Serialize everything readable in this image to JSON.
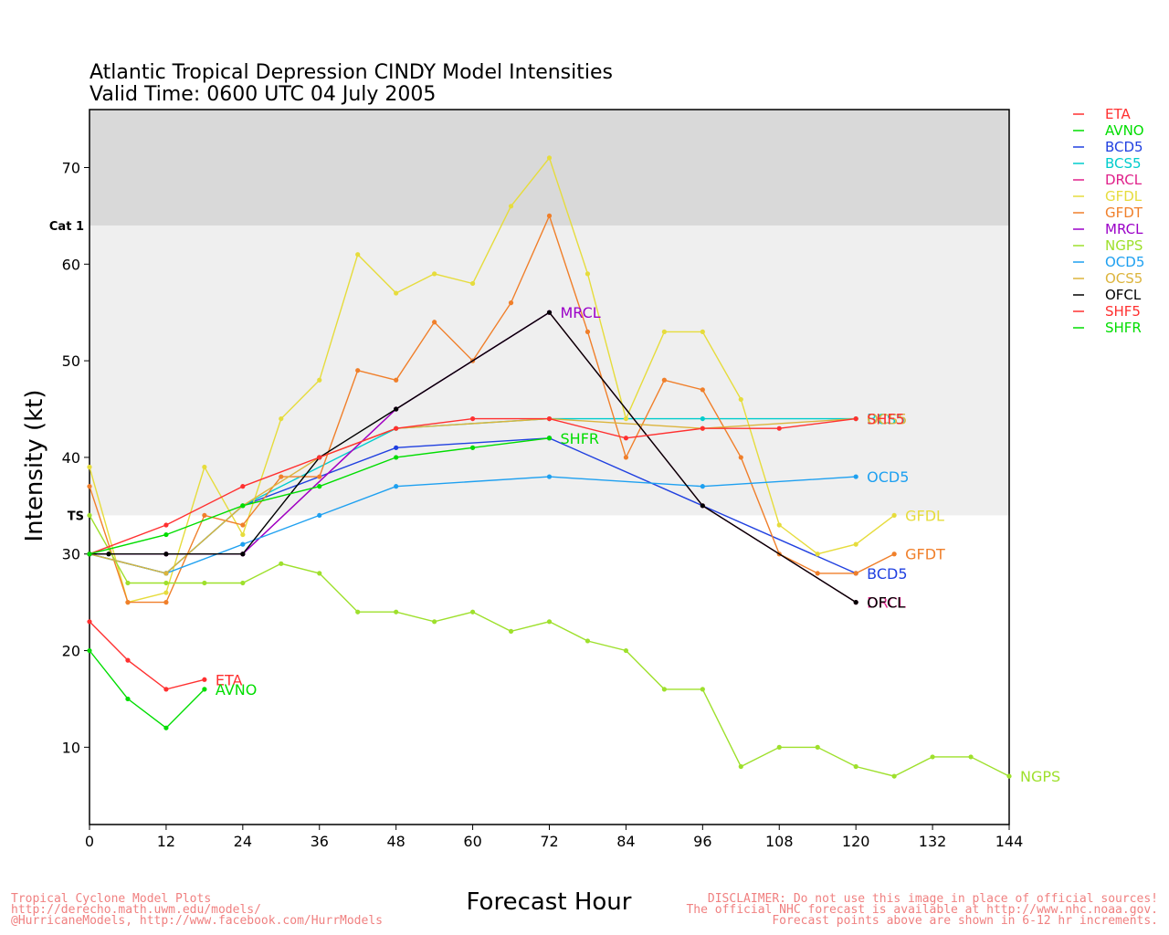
{
  "chart_data": {
    "type": "line",
    "title": "Atlantic Tropical Depression CINDY Model Intensities",
    "subtitle": "Valid Time: 0600 UTC 04 July 2005",
    "xlabel": "Forecast Hour",
    "ylabel": "Intensity (kt)",
    "xlim": [
      0,
      144
    ],
    "ylim": [
      2,
      76
    ],
    "xticks": [
      0,
      12,
      24,
      36,
      48,
      60,
      72,
      84,
      96,
      108,
      120,
      132,
      144
    ],
    "yticks": [
      10,
      20,
      30,
      40,
      50,
      60,
      70
    ],
    "bands": [
      {
        "label": "TS",
        "from": 34,
        "to": 64,
        "color": "#efefef"
      },
      {
        "label": "Cat 1",
        "from": 64,
        "to": 76,
        "color": "#d9d9d9"
      }
    ],
    "legend_position": "right",
    "series": [
      {
        "name": "ETA",
        "color": "#ff3030",
        "x": [
          0,
          6,
          12,
          18
        ],
        "y": [
          23,
          19,
          16,
          17
        ],
        "label_at_end": true
      },
      {
        "name": "AVNO",
        "color": "#00dd00",
        "x": [
          0,
          6,
          12,
          18
        ],
        "y": [
          20,
          15,
          12,
          16
        ],
        "label_at_end": true
      },
      {
        "name": "BCD5",
        "color": "#2040e0",
        "x": [
          0,
          12,
          24,
          48,
          72,
          120
        ],
        "y": [
          30,
          28,
          35,
          41,
          42,
          28
        ],
        "label_at_end": true
      },
      {
        "name": "BCS5",
        "color": "#00cccc",
        "x": [
          0,
          12,
          24,
          48,
          72,
          96,
          120
        ],
        "y": [
          30,
          28,
          35,
          43,
          44,
          44,
          44
        ],
        "label_at_end": true
      },
      {
        "name": "DRCL",
        "color": "#e0208a",
        "x": [
          0,
          12,
          24,
          48,
          72,
          96,
          120
        ],
        "y": [
          30,
          30,
          30,
          45,
          55,
          35,
          25
        ],
        "label_at_end": true
      },
      {
        "name": "GFDL",
        "color": "#e6dc3c",
        "x": [
          0,
          6,
          12,
          18,
          24,
          30,
          36,
          42,
          48,
          54,
          60,
          66,
          72,
          78,
          84,
          90,
          96,
          102,
          108,
          114,
          120,
          126
        ],
        "y": [
          39,
          25,
          26,
          39,
          32,
          44,
          48,
          61,
          57,
          59,
          58,
          66,
          71,
          59,
          44,
          53,
          53,
          46,
          33,
          30,
          31,
          34
        ],
        "label_at_end": true
      },
      {
        "name": "GFDT",
        "color": "#f07f2a",
        "x": [
          0,
          6,
          12,
          18,
          24,
          30,
          36,
          42,
          48,
          54,
          60,
          66,
          72,
          78,
          84,
          90,
          96,
          102,
          108,
          114,
          120,
          126
        ],
        "y": [
          37,
          25,
          25,
          34,
          33,
          38,
          38,
          49,
          48,
          54,
          50,
          56,
          65,
          53,
          40,
          48,
          47,
          40,
          30,
          28,
          28,
          30
        ],
        "label_at_end": true
      },
      {
        "name": "MRCL",
        "color": "#9b00c8",
        "x": [
          0,
          12,
          24,
          48,
          72
        ],
        "y": [
          30,
          30,
          30,
          45,
          55
        ],
        "label_at_end": true
      },
      {
        "name": "NGPS",
        "color": "#9ee02c",
        "x": [
          0,
          6,
          12,
          18,
          24,
          30,
          36,
          42,
          48,
          54,
          60,
          66,
          72,
          78,
          84,
          90,
          96,
          102,
          108,
          114,
          120,
          126,
          132,
          138,
          144
        ],
        "y": [
          34,
          27,
          27,
          27,
          27,
          29,
          28,
          24,
          24,
          23,
          24,
          22,
          23,
          21,
          20,
          16,
          16,
          8,
          10,
          10,
          8,
          7,
          9,
          9,
          7
        ],
        "label_at_end": true
      },
      {
        "name": "OCD5",
        "color": "#1ea0f0",
        "x": [
          0,
          12,
          24,
          36,
          48,
          72,
          96,
          120
        ],
        "y": [
          30,
          28,
          31,
          34,
          37,
          38,
          37,
          38
        ],
        "label_at_end": true
      },
      {
        "name": "OCS5",
        "color": "#dcb43c",
        "x": [
          0,
          12,
          24,
          36,
          48,
          72,
          96,
          120
        ],
        "y": [
          30,
          28,
          35,
          40,
          43,
          44,
          43,
          44
        ],
        "label_at_end": true
      },
      {
        "name": "OFCL",
        "color": "#000000",
        "x": [
          0,
          3,
          12,
          24,
          36,
          48,
          72,
          96,
          120
        ],
        "y": [
          30,
          30,
          30,
          30,
          40,
          45,
          55,
          35,
          25
        ],
        "label_at_end": true
      },
      {
        "name": "SHF5",
        "color": "#ff3030",
        "x": [
          0,
          12,
          24,
          36,
          48,
          60,
          72,
          84,
          96,
          108,
          120
        ],
        "y": [
          30,
          33,
          37,
          40,
          43,
          44,
          44,
          42,
          43,
          43,
          44
        ],
        "label_at_end": true
      },
      {
        "name": "SHFR",
        "color": "#00dd00",
        "x": [
          0,
          12,
          24,
          36,
          48,
          60,
          72
        ],
        "y": [
          30,
          32,
          35,
          37,
          40,
          41,
          42
        ],
        "label_at_end": true
      }
    ]
  },
  "footer": {
    "left_line1": "Tropical Cyclone Model Plots",
    "left_line2": "http://derecho.math.uwm.edu/models/",
    "left_line3": "@HurricaneModels, http://www.facebook.com/HurrModels",
    "right_line1": "DISCLAIMER: Do not use this image in place of official sources!",
    "right_line2": "The official NHC forecast is available at http://www.nhc.noaa.gov.",
    "right_line3": "Forecast points above are shown in 6-12 hr increments."
  }
}
